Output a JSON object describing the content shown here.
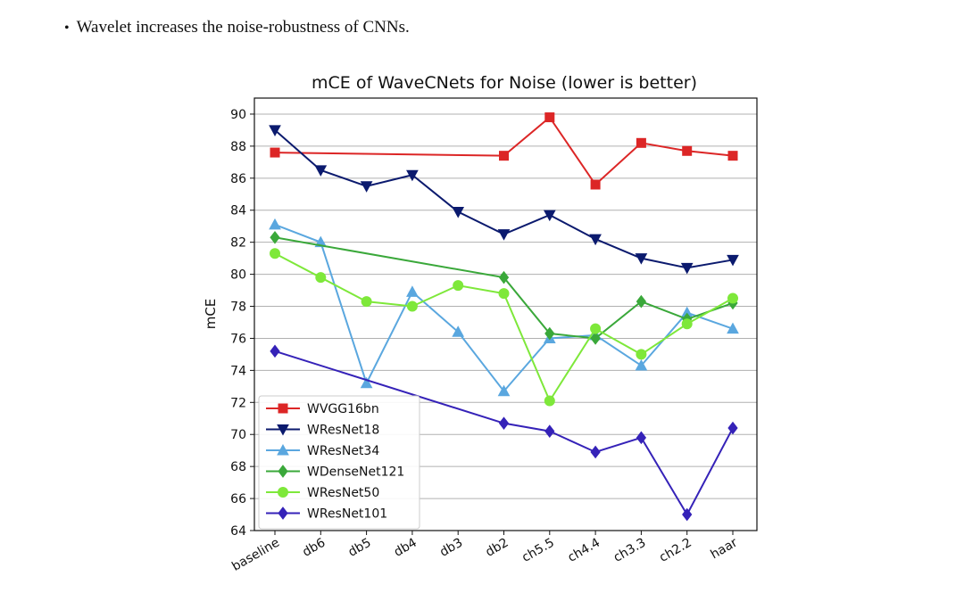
{
  "intro": {
    "bullet": "•",
    "text": "Wavelet increases the noise-robustness of CNNs."
  },
  "chart_data": {
    "type": "line",
    "title": "mCE of WaveCNets for Noise (lower is better)",
    "xlabel": "",
    "ylabel": "mCE",
    "ylim": [
      64,
      91
    ],
    "yticks": [
      64,
      66,
      68,
      70,
      72,
      74,
      76,
      78,
      80,
      82,
      84,
      86,
      88,
      90
    ],
    "grid": "horizontal",
    "legend_position": "lower-left",
    "categories": [
      "baseline",
      "db6",
      "db5",
      "db4",
      "db3",
      "db2",
      "ch5.5",
      "ch4.4",
      "ch3.3",
      "ch2.2",
      "haar"
    ],
    "series": [
      {
        "name": "WVGG16bn",
        "color": "#dc2626",
        "marker": "square",
        "values": [
          87.6,
          null,
          null,
          null,
          null,
          87.4,
          89.8,
          85.6,
          88.2,
          87.7,
          87.4
        ]
      },
      {
        "name": "WResNet18",
        "color": "#0b1a6e",
        "marker": "triangle-down",
        "values": [
          89.0,
          86.5,
          85.5,
          86.2,
          83.9,
          82.5,
          83.7,
          82.2,
          81.0,
          80.4,
          80.9
        ]
      },
      {
        "name": "WResNet34",
        "color": "#5aa7df",
        "marker": "triangle-up",
        "values": [
          83.1,
          82.0,
          73.2,
          78.9,
          76.4,
          72.7,
          76.0,
          76.2,
          74.3,
          77.6,
          76.6
        ]
      },
      {
        "name": "WDenseNet121",
        "color": "#3aa83a",
        "marker": "diamond",
        "values": [
          82.3,
          null,
          null,
          null,
          null,
          79.8,
          76.3,
          76.0,
          78.3,
          77.2,
          78.2
        ]
      },
      {
        "name": "WResNet50",
        "color": "#7ee83a",
        "marker": "circle",
        "values": [
          81.3,
          79.8,
          78.3,
          78.0,
          79.3,
          78.8,
          72.1,
          76.6,
          75.0,
          76.9,
          78.5
        ]
      },
      {
        "name": "WResNet101",
        "color": "#3522b8",
        "marker": "diamond",
        "values": [
          75.2,
          null,
          null,
          null,
          null,
          70.7,
          70.2,
          68.9,
          69.8,
          65.0,
          70.4
        ]
      }
    ]
  }
}
